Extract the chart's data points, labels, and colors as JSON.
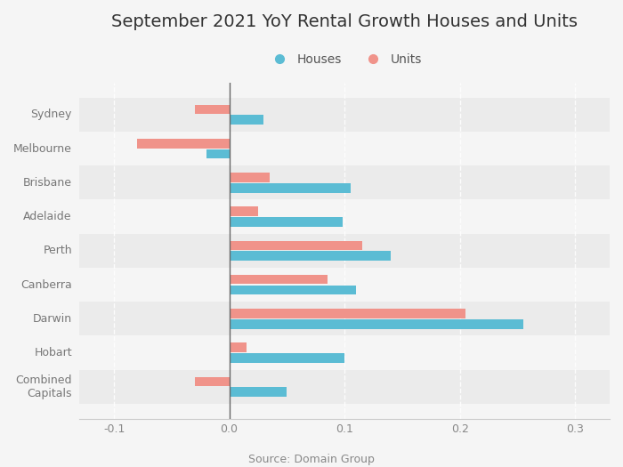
{
  "title": "September 2021 YoY Rental Growth Houses and Units",
  "source": "Source: Domain Group",
  "categories": [
    "Sydney",
    "Melbourne",
    "Brisbane",
    "Adelaide",
    "Perth",
    "Canberra",
    "Darwin",
    "Hobart",
    "Combined\nCapitals"
  ],
  "houses": [
    0.03,
    -0.02,
    0.105,
    0.098,
    0.14,
    0.11,
    0.255,
    0.1,
    0.05
  ],
  "units": [
    -0.03,
    -0.08,
    0.035,
    0.025,
    0.115,
    0.085,
    0.205,
    0.015,
    -0.03
  ],
  "house_color": "#5bbcd4",
  "unit_color": "#f0938a",
  "xlim": [
    -0.13,
    0.33
  ],
  "xticks": [
    -0.1,
    0.0,
    0.1,
    0.2,
    0.3
  ],
  "bar_height": 0.28,
  "background_color": "#f5f5f5",
  "row_colors_odd": "#ebebeb",
  "row_colors_even": "#f5f5f5",
  "zero_line_color": "#666666",
  "title_fontsize": 14,
  "tick_fontsize": 9,
  "legend_fontsize": 10,
  "axis_label_color": "#888888",
  "ytick_color": "#777777"
}
